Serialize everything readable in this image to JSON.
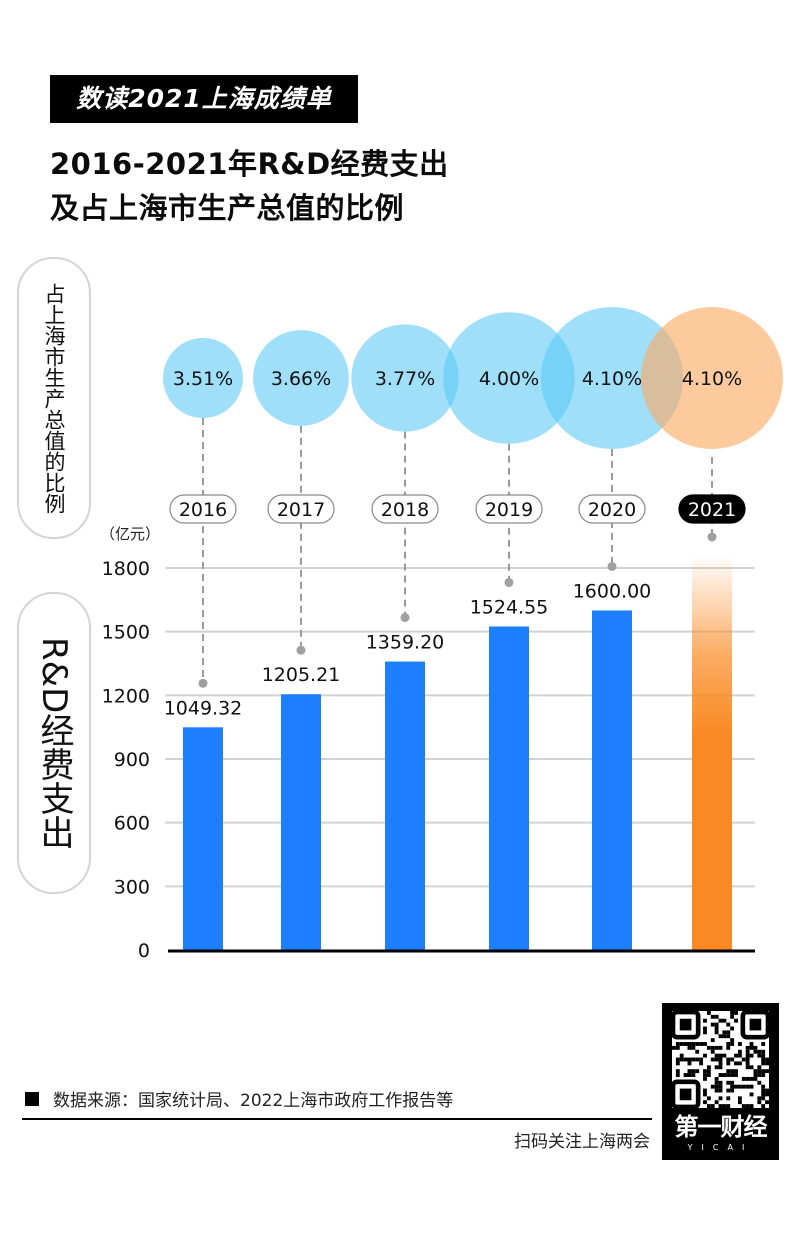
{
  "header": {
    "banner": "数读2021上海成绩单",
    "title_line1": "2016-2021年R&D经费支出",
    "title_line2": "及占上海市生产总值的比例"
  },
  "side_labels": {
    "ratio": "占上海市生产总值的比例",
    "spend": "R&D经费支出"
  },
  "chart_data": [
    {
      "type": "bubble",
      "title": "占上海市生产总值的比例",
      "categories": [
        "2016",
        "2017",
        "2018",
        "2019",
        "2020",
        "2021"
      ],
      "values": [
        3.51,
        3.66,
        3.77,
        4.0,
        4.1,
        4.1
      ],
      "labels": [
        "3.51%",
        "3.66%",
        "3.77%",
        "4.00%",
        "4.10%",
        "4.10%"
      ],
      "highlight": "2021"
    },
    {
      "type": "bar",
      "title": "R&D经费支出",
      "ylabel": "（亿元）",
      "categories": [
        "2016",
        "2017",
        "2018",
        "2019",
        "2020",
        "2021"
      ],
      "values": [
        1049.32,
        1205.21,
        1359.2,
        1524.55,
        1600.0,
        null
      ],
      "labels": [
        "1049.32",
        "1205.21",
        "1359.20",
        "1524.55",
        "1600.00",
        ""
      ],
      "ylim": [
        0,
        1800
      ],
      "yticks": [
        "0",
        "300",
        "600",
        "900",
        "1200",
        "1500",
        "1800"
      ],
      "grid": true,
      "highlight": "2021"
    }
  ],
  "colors": {
    "bar": "#1e7ffe",
    "bar_highlight": "#f98a23",
    "bubble": "#5ac8f5",
    "bubble_highlight": "#fbaa62"
  },
  "footer": {
    "source": "数据来源：国家统计局、2022上海市政府工作报告等",
    "follow": "扫码关注上海两会",
    "logo_text": "第一财经",
    "logo_sub": "YICAI"
  }
}
